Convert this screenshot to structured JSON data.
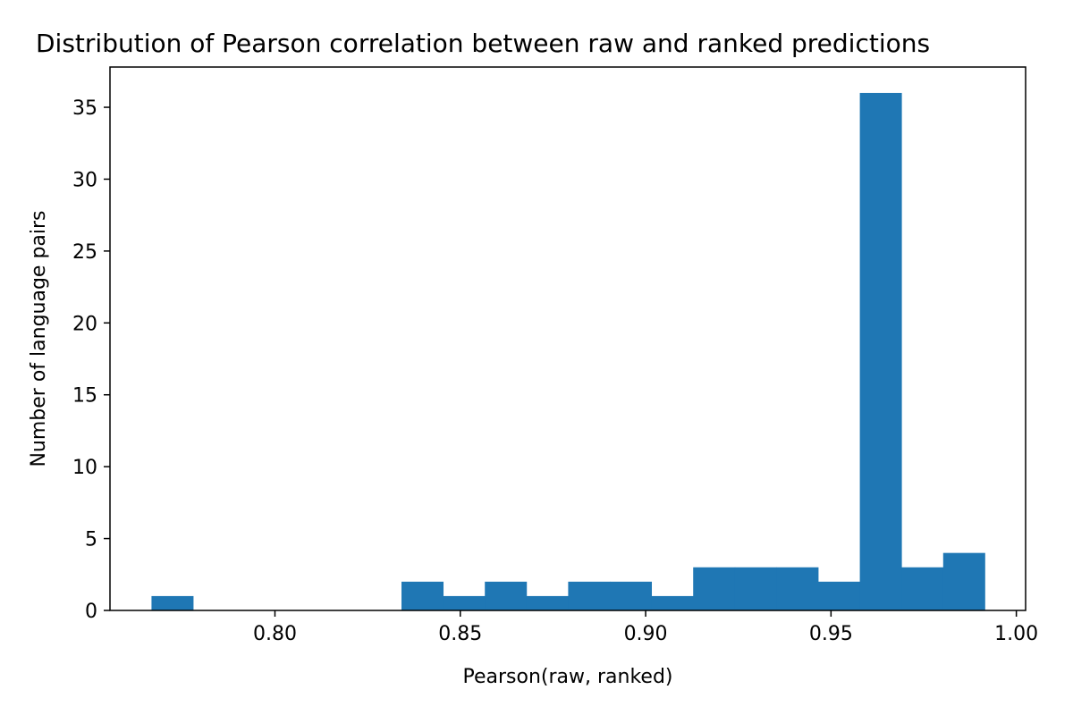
{
  "chart_data": {
    "type": "bar",
    "title": "Distribution of Pearson correlation between raw and ranked predictions",
    "xlabel": "Pearson(raw, ranked)",
    "ylabel": "Number of language pairs",
    "bin_start": 0.7667,
    "bin_width": 0.01124,
    "values": [
      1,
      0,
      0,
      0,
      0,
      0,
      2,
      1,
      2,
      1,
      2,
      2,
      1,
      3,
      3,
      3,
      2,
      36,
      3,
      4
    ],
    "xlim": [
      0.7555,
      1.0025
    ],
    "ylim": [
      0,
      37.8
    ],
    "xticks": [
      {
        "value": 0.8,
        "label": "0.80"
      },
      {
        "value": 0.85,
        "label": "0.85"
      },
      {
        "value": 0.9,
        "label": "0.90"
      },
      {
        "value": 0.95,
        "label": "0.95"
      },
      {
        "value": 1.0,
        "label": "1.00"
      }
    ],
    "yticks": [
      {
        "value": 0,
        "label": "0"
      },
      {
        "value": 5,
        "label": "5"
      },
      {
        "value": 10,
        "label": "10"
      },
      {
        "value": 15,
        "label": "15"
      },
      {
        "value": 20,
        "label": "20"
      },
      {
        "value": 25,
        "label": "25"
      },
      {
        "value": 30,
        "label": "30"
      },
      {
        "value": 35,
        "label": "35"
      }
    ],
    "bar_color": "#1f77b4",
    "grid": false,
    "legend": "none"
  }
}
